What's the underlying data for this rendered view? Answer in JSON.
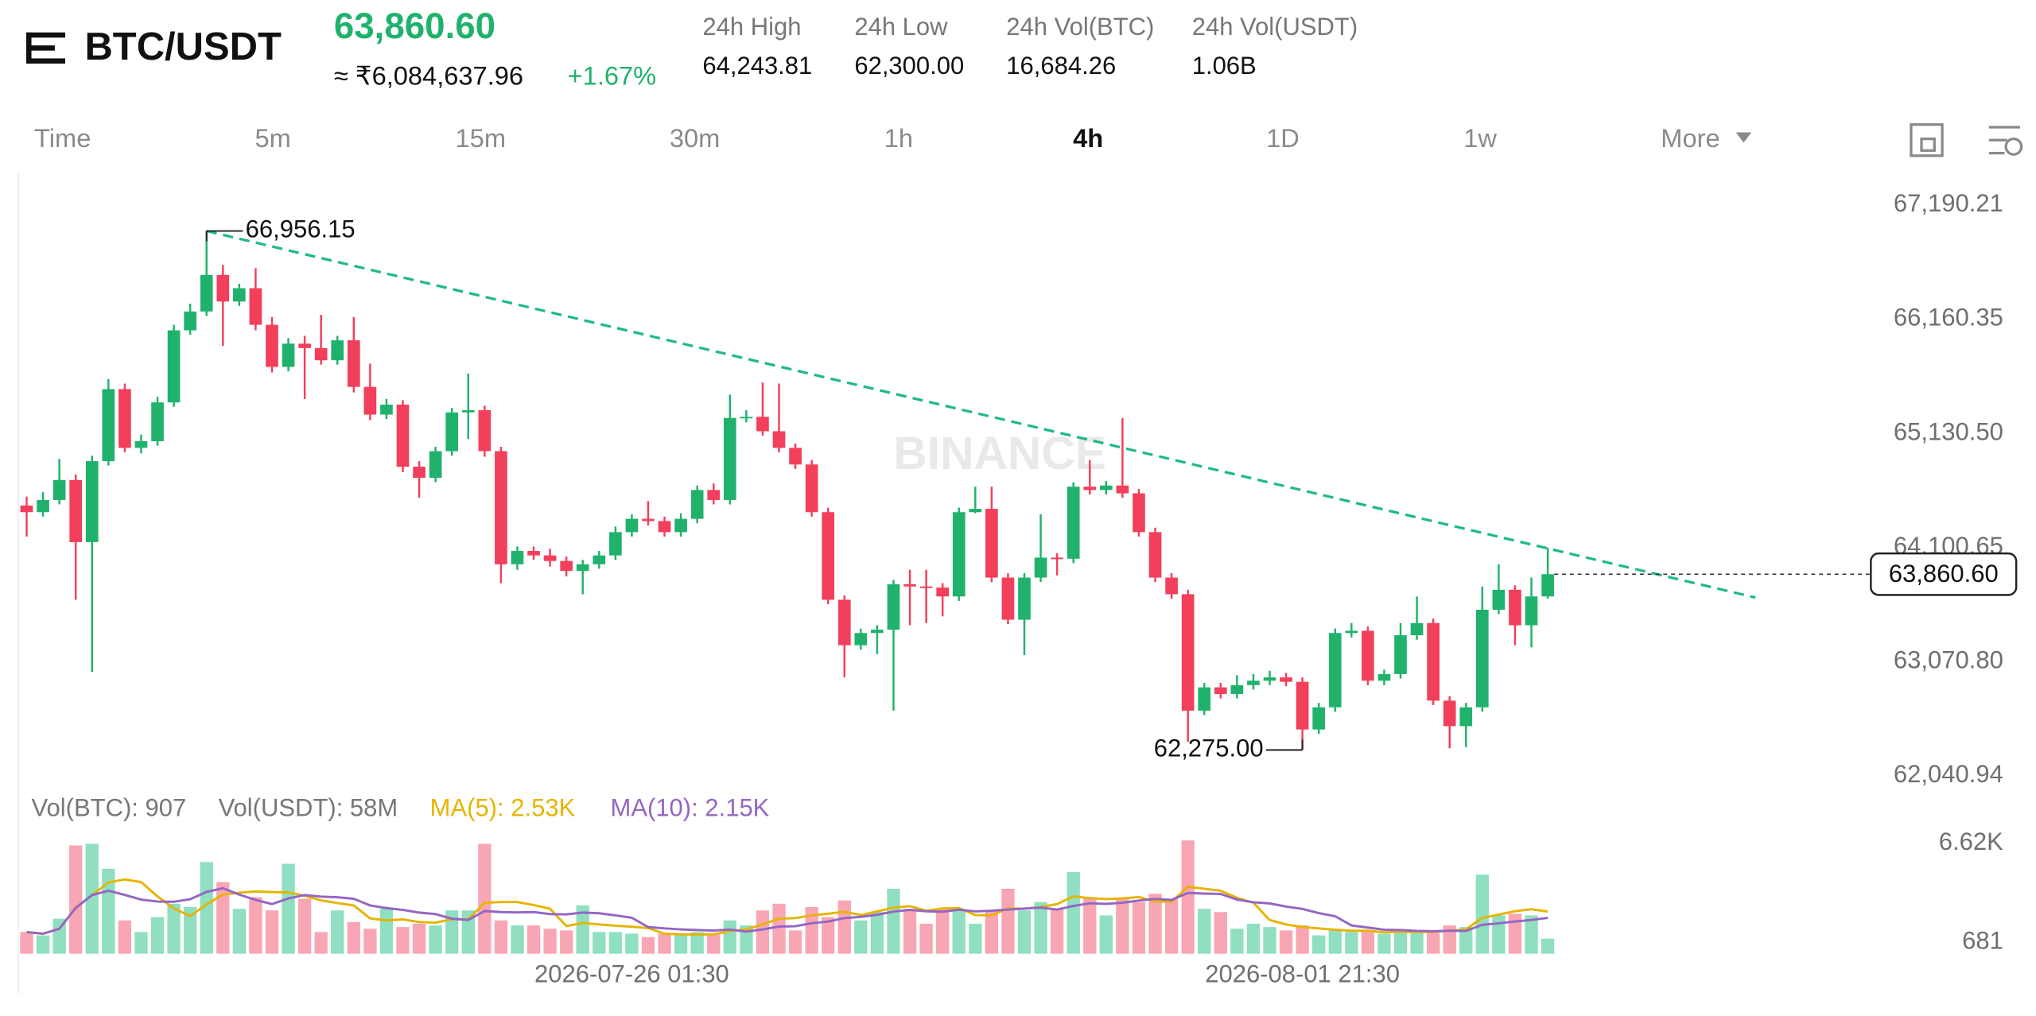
{
  "header": {
    "symbol": "BTC/USDT",
    "price": "63,860.60",
    "fiat_price": "≈ ₹6,084,637.96",
    "change": "+1.67%",
    "stats": [
      {
        "label": "24h High",
        "value": "64,243.81"
      },
      {
        "label": "24h Low",
        "value": "62,300.00"
      },
      {
        "label": "24h Vol(BTC)",
        "value": "16,684.26"
      },
      {
        "label": "24h Vol(USDT)",
        "value": "1.06B"
      }
    ]
  },
  "tabs": [
    "Time",
    "5m",
    "15m",
    "30m",
    "1h",
    "4h",
    "1D",
    "1w",
    "More"
  ],
  "active_tab": 5,
  "watermark": "BINANCE",
  "chart_data": {
    "type": "candlestick",
    "up_color": "#20b26c",
    "down_color": "#f23f5b",
    "candles": [
      [
        64480,
        64560,
        64200,
        64420
      ],
      [
        64420,
        64600,
        64380,
        64530
      ],
      [
        64530,
        64900,
        64490,
        64710
      ],
      [
        64710,
        64760,
        63630,
        64150
      ],
      [
        64150,
        64930,
        62980,
        64880
      ],
      [
        64880,
        65620,
        64840,
        65530
      ],
      [
        65530,
        65580,
        64960,
        65000
      ],
      [
        65000,
        65120,
        64950,
        65060
      ],
      [
        65060,
        65460,
        65020,
        65410
      ],
      [
        65410,
        66110,
        65370,
        66060
      ],
      [
        66060,
        66300,
        66020,
        66230
      ],
      [
        66230,
        66956.15,
        66190,
        66560
      ],
      [
        66560,
        66650,
        65920,
        66320
      ],
      [
        66320,
        66480,
        66280,
        66440
      ],
      [
        66440,
        66620,
        66060,
        66110
      ],
      [
        66110,
        66180,
        65680,
        65730
      ],
      [
        65730,
        65990,
        65690,
        65940
      ],
      [
        65940,
        66010,
        65440,
        65900
      ],
      [
        65900,
        66200,
        65750,
        65790
      ],
      [
        65790,
        66010,
        65750,
        65970
      ],
      [
        65970,
        66180,
        65500,
        65550
      ],
      [
        65550,
        65760,
        65250,
        65300
      ],
      [
        65300,
        65440,
        65260,
        65390
      ],
      [
        65390,
        65430,
        64780,
        64830
      ],
      [
        64830,
        64880,
        64550,
        64730
      ],
      [
        64730,
        65010,
        64690,
        64970
      ],
      [
        64970,
        65360,
        64930,
        65320
      ],
      [
        65320,
        65670,
        65080,
        65340
      ],
      [
        65340,
        65380,
        64920,
        64970
      ],
      [
        64970,
        65010,
        63780,
        63950
      ],
      [
        63950,
        64110,
        63900,
        64070
      ],
      [
        64070,
        64110,
        63990,
        64030
      ],
      [
        64030,
        64090,
        63930,
        63980
      ],
      [
        63980,
        64020,
        63840,
        63890
      ],
      [
        63890,
        63990,
        63680,
        63950
      ],
      [
        63950,
        64070,
        63910,
        64030
      ],
      [
        64030,
        64290,
        63990,
        64240
      ],
      [
        64240,
        64400,
        64200,
        64360
      ],
      [
        64360,
        64520,
        64300,
        64340
      ],
      [
        64340,
        64380,
        64200,
        64240
      ],
      [
        64240,
        64410,
        64200,
        64360
      ],
      [
        64360,
        64660,
        64320,
        64620
      ],
      [
        64620,
        64680,
        64490,
        64530
      ],
      [
        64530,
        65480,
        64490,
        65270
      ],
      [
        65270,
        65340,
        65230,
        65280
      ],
      [
        65280,
        65590,
        65110,
        65150
      ],
      [
        65150,
        65580,
        64960,
        65000
      ],
      [
        65000,
        65040,
        64810,
        64850
      ],
      [
        64850,
        64890,
        64380,
        64420
      ],
      [
        64420,
        64460,
        63590,
        63630
      ],
      [
        63630,
        63670,
        62930,
        63220
      ],
      [
        63220,
        63370,
        63180,
        63330
      ],
      [
        63330,
        63400,
        63140,
        63360
      ],
      [
        63360,
        63810,
        62630,
        63770
      ],
      [
        63770,
        63900,
        63400,
        63750
      ],
      [
        63750,
        63900,
        63420,
        63740
      ],
      [
        63740,
        63780,
        63480,
        63660
      ],
      [
        63660,
        64460,
        63620,
        64420
      ],
      [
        64420,
        64650,
        64410,
        64450
      ],
      [
        64450,
        64650,
        63790,
        63830
      ],
      [
        63830,
        63870,
        63410,
        63450
      ],
      [
        63450,
        63870,
        63130,
        63830
      ],
      [
        63830,
        64400,
        63790,
        64010
      ],
      [
        64010,
        64050,
        63850,
        64000
      ],
      [
        64000,
        64690,
        63960,
        64650
      ],
      [
        64650,
        64890,
        64580,
        64620
      ],
      [
        64620,
        64700,
        64580,
        64660
      ],
      [
        64660,
        65270,
        64550,
        64590
      ],
      [
        64590,
        64630,
        64200,
        64240
      ],
      [
        64240,
        64280,
        63790,
        63830
      ],
      [
        63830,
        63870,
        63640,
        63680
      ],
      [
        63680,
        63720,
        62350,
        62630
      ],
      [
        62630,
        62880,
        62590,
        62840
      ],
      [
        62840,
        62880,
        62740,
        62780
      ],
      [
        62780,
        62950,
        62740,
        62860
      ],
      [
        62860,
        62960,
        62820,
        62900
      ],
      [
        62900,
        62990,
        62860,
        62930
      ],
      [
        62930,
        62970,
        62850,
        62890
      ],
      [
        62890,
        62930,
        62275,
        62460
      ],
      [
        62460,
        62700,
        62420,
        62660
      ],
      [
        62660,
        63370,
        62620,
        63330
      ],
      [
        63330,
        63420,
        63290,
        63350
      ],
      [
        63350,
        63390,
        62860,
        62900
      ],
      [
        62900,
        63000,
        62860,
        62960
      ],
      [
        62960,
        63420,
        62920,
        63310
      ],
      [
        63310,
        63660,
        63270,
        63420
      ],
      [
        63420,
        63460,
        62680,
        62720
      ],
      [
        62720,
        62760,
        62290,
        62490
      ],
      [
        62490,
        62700,
        62300,
        62660
      ],
      [
        62660,
        63750,
        62620,
        63540
      ],
      [
        63540,
        63950,
        63500,
        63720
      ],
      [
        63720,
        63760,
        63220,
        63400
      ],
      [
        63400,
        63830,
        63200,
        63660
      ],
      [
        63660,
        64100,
        63640,
        63860.6
      ]
    ],
    "xlim": [
      -0.5,
      109.5
    ],
    "xticks": [
      {
        "value": 37,
        "label": "2026-07-26 01:30"
      },
      {
        "value": 78,
        "label": "2026-08-01 21:30"
      }
    ],
    "ylim": [
      61959,
      67518
    ],
    "yticks": [
      {
        "value": 67190.21,
        "label": "67,190.21"
      },
      {
        "value": 66160.35,
        "label": "66,160.35"
      },
      {
        "value": 65130.5,
        "label": "65,130.50"
      },
      {
        "value": 64100.65,
        "label": "64,100.65"
      },
      {
        "value": 63070.8,
        "label": "63,070.80"
      },
      {
        "value": 62040.94,
        "label": "62,040.94"
      }
    ],
    "current_price": {
      "value": 63860.6,
      "label": "63,860.60"
    },
    "annotations": [
      {
        "x": 11,
        "value": 66956.15,
        "label": "66,956.15"
      },
      {
        "x": 78,
        "value": 62275,
        "label": "62,275.00"
      }
    ],
    "trendline": {
      "x": [
        11,
        105.7
      ],
      "y": [
        66956.15,
        63650
      ],
      "color": "#1fb98a"
    },
    "volume": {
      "legend": [
        {
          "text": "Vol(BTC): 907",
          "color": "#777777"
        },
        {
          "text": "Vol(USDT): 58M",
          "color": "#777777"
        },
        {
          "text": "MA(5): 2.53K",
          "color": "#e6b400"
        },
        {
          "text": "MA(10): 2.15K",
          "color": "#9466c4"
        }
      ],
      "up_color": "#8fdfc0",
      "down_color": "#f8a6b4",
      "ylim": [
        0,
        7400
      ],
      "yticks": [
        {
          "value": 6620,
          "label": "6.62K"
        },
        681
      ],
      "values": [
        1300,
        1100,
        2100,
        6500,
        6600,
        5100,
        2000,
        1300,
        2200,
        3000,
        2800,
        5500,
        4300,
        2700,
        3400,
        2600,
        5400,
        3300,
        1300,
        2600,
        1900,
        1500,
        2700,
        1600,
        1800,
        1700,
        2600,
        2600,
        6600,
        2000,
        1700,
        1700,
        1500,
        1400,
        2900,
        1300,
        1300,
        1200,
        1000,
        1200,
        1100,
        1300,
        1200,
        2000,
        1700,
        2600,
        3000,
        1400,
        2800,
        2200,
        3200,
        2000,
        2500,
        3900,
        2700,
        1800,
        2700,
        2600,
        1800,
        2600,
        3900,
        2600,
        3100,
        2700,
        4900,
        3400,
        2300,
        3300,
        3100,
        3600,
        3300,
        6800,
        2700,
        2500,
        1500,
        1800,
        1600,
        1400,
        1700,
        1100,
        1400,
        1300,
        1400,
        1200,
        1300,
        1300,
        1400,
        1700,
        1600,
        4750,
        2300,
        2400,
        2300,
        907
      ],
      "series": [
        {
          "name": "MA(5)",
          "color": "#e6b400",
          "values": [
            1300,
            1200,
            1500,
            2750,
            3520,
            4280,
            4460,
            4300,
            3440,
            2720,
            2260,
            2960,
            3560,
            3660,
            3740,
            3700,
            3680,
            3480,
            3200,
            3040,
            2900,
            2120,
            2000,
            2060,
            1900,
            1860,
            2080,
            2060,
            3060,
            3100,
            3100,
            2920,
            2700,
            1660,
            1840,
            1760,
            1680,
            1620,
            1540,
            1200,
            1160,
            1160,
            1160,
            1360,
            1460,
            1760,
            2100,
            2140,
            2300,
            2400,
            2520,
            2320,
            2540,
            2760,
            2860,
            2580,
            2720,
            2740,
            2320,
            2300,
            2720,
            2700,
            2800,
            2980,
            3440,
            3340,
            3280,
            3320,
            3400,
            3140,
            3120,
            4020,
            3900,
            3780,
            3360,
            3060,
            2020,
            1760,
            1600,
            1520,
            1440,
            1380,
            1380,
            1280,
            1320,
            1300,
            1320,
            1380,
            1460,
            2150,
            2350,
            2550,
            2670,
            2530
          ]
        },
        {
          "name": "MA(10)",
          "color": "#9466c4",
          "values": [
            1300,
            1200,
            1500,
            2750,
            3520,
            3780,
            3530,
            3250,
            3130,
            3120,
            3270,
            3710,
            3930,
            3550,
            3230,
            2980,
            3320,
            3520,
            3430,
            3390,
            3300,
            2900,
            2740,
            2630,
            2470,
            2380,
            2100,
            2030,
            2560,
            2500,
            2480,
            2500,
            2380,
            2360,
            2470,
            2430,
            2300,
            2160,
            1600,
            1520,
            1460,
            1420,
            1390,
            1450,
            1330,
            1460,
            1630,
            1650,
            1830,
            1930,
            2140,
            2210,
            2340,
            2530,
            2630,
            2550,
            2520,
            2640,
            2540,
            2580,
            2650,
            2710,
            2770,
            2650,
            2870,
            3030,
            2990,
            3060,
            3190,
            3290,
            3230,
            3650,
            3610,
            3590,
            3250,
            3090,
            3020,
            2830,
            2690,
            2440,
            2250,
            1700,
            1570,
            1440,
            1420,
            1370,
            1350,
            1380,
            1370,
            1735,
            1825,
            1935,
            2025,
            2150
          ]
        }
      ]
    }
  }
}
